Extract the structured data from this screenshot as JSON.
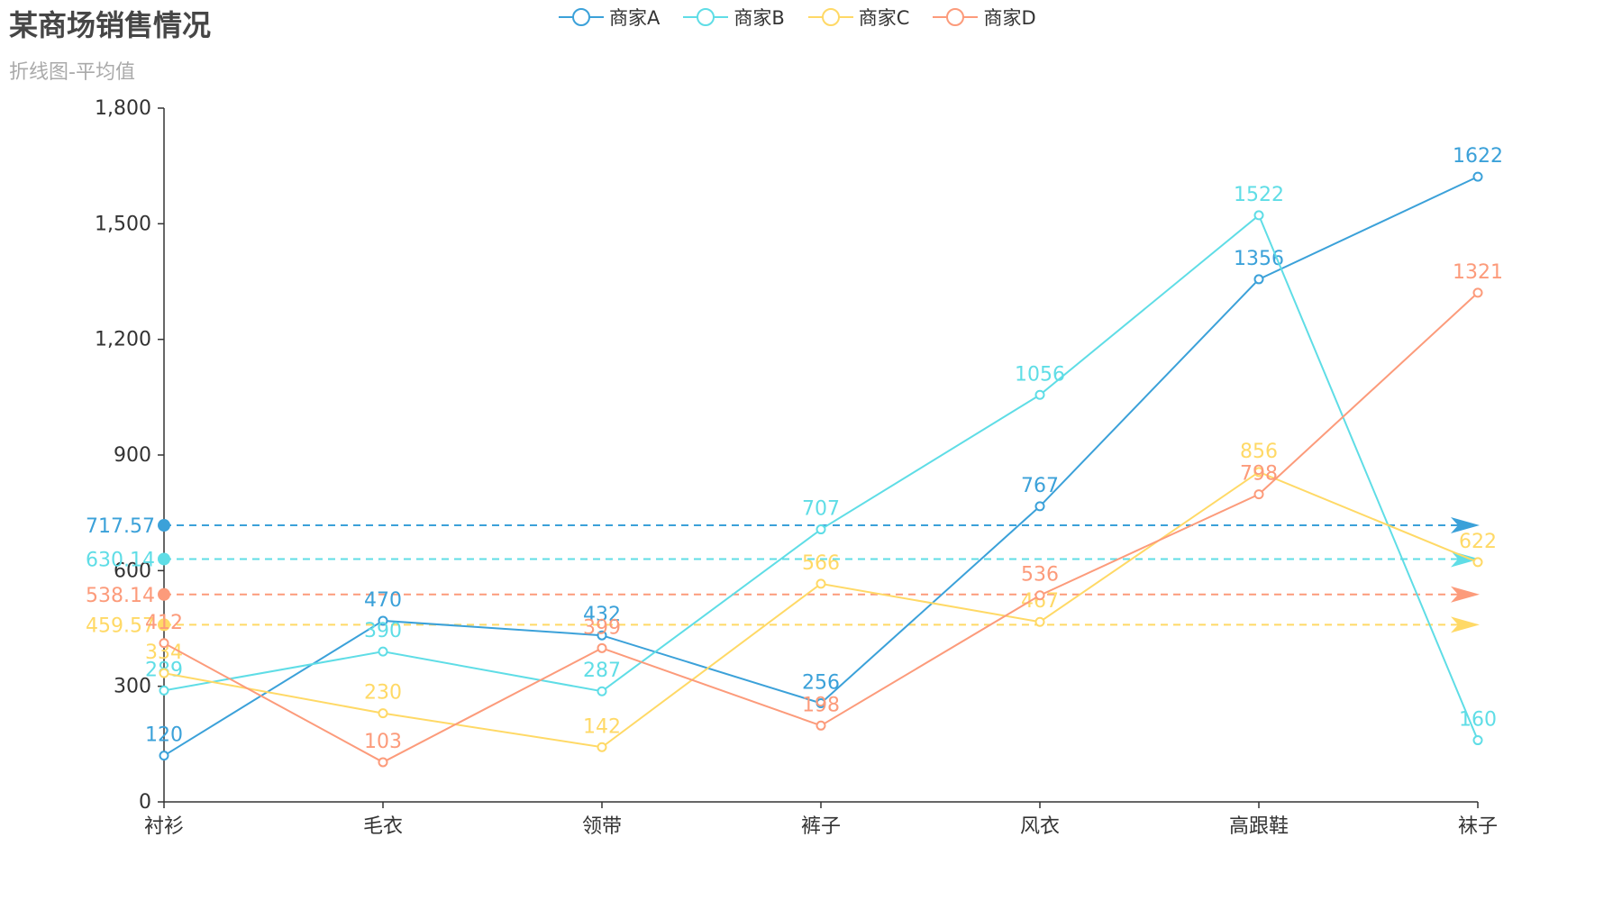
{
  "title": "某商场销售情况",
  "subtitle": "折线图-平均值",
  "chart_data": {
    "type": "line",
    "title": "某商场销售情况",
    "subtitle": "折线图-平均值",
    "xlabel": "",
    "ylabel": "",
    "categories": [
      "衬衫",
      "毛衣",
      "领带",
      "裤子",
      "风衣",
      "高跟鞋",
      "袜子"
    ],
    "ylim": [
      0,
      1800
    ],
    "yticks": [
      0,
      300,
      600,
      900,
      1200,
      1500,
      1800
    ],
    "ytick_labels": [
      "0",
      "300",
      "600",
      "900",
      "1,200",
      "1,500",
      "1,800"
    ],
    "legend_position": "top-center",
    "grid": false,
    "series": [
      {
        "name": "商家A",
        "color": "#3ba1d9",
        "values": [
          120,
          470,
          432,
          256,
          767,
          1356,
          1622
        ],
        "average": 717.57,
        "average_label": "717.57"
      },
      {
        "name": "商家B",
        "color": "#5fdde6",
        "values": [
          289,
          390,
          287,
          707,
          1056,
          1522,
          160
        ],
        "average": 630.14,
        "average_label": "630.14"
      },
      {
        "name": "商家C",
        "color": "#ffd966",
        "values": [
          334,
          230,
          142,
          566,
          467,
          856,
          622
        ],
        "average": 459.57,
        "average_label": "459.57"
      },
      {
        "name": "商家D",
        "color": "#fc9b7b",
        "values": [
          412,
          103,
          399,
          198,
          536,
          798,
          1321
        ],
        "average": 538.14,
        "average_label": "538.14"
      }
    ]
  }
}
